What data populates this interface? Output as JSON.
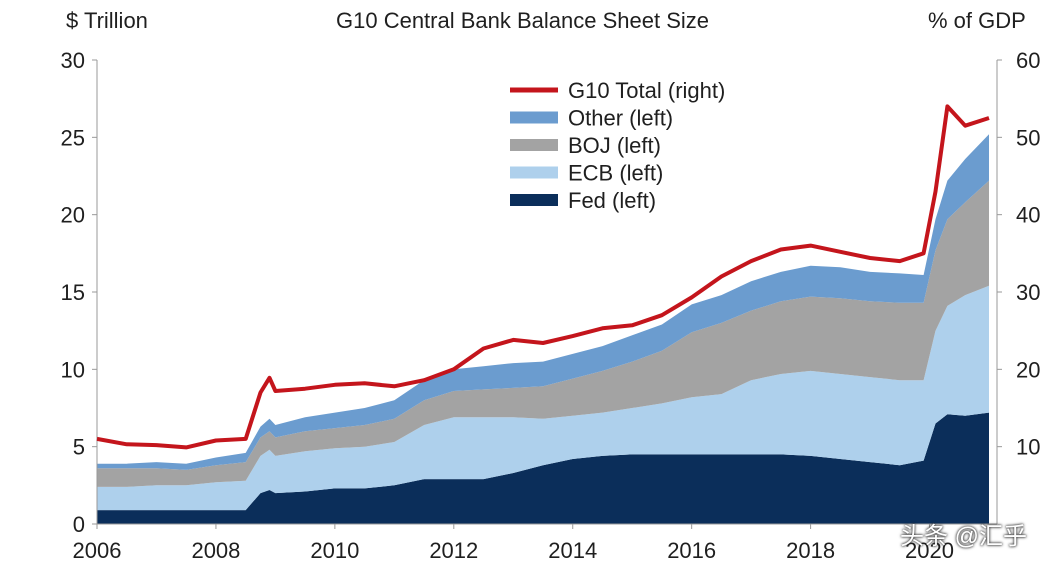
{
  "chart_data": {
    "type": "area",
    "title": "G10 Central Bank Balance Sheet Size",
    "left_axis_label": "$ Trillion",
    "right_axis_label": "% of GDP",
    "left_ylim": [
      0,
      30
    ],
    "right_ylim": [
      0,
      60
    ],
    "left_ticks": [
      "0",
      "5",
      "10",
      "15",
      "20",
      "25",
      "30"
    ],
    "right_ticks": [
      "10",
      "20",
      "30",
      "40",
      "50",
      "60"
    ],
    "xlim": [
      2006,
      2021
    ],
    "x_ticks": [
      "2006",
      "2008",
      "2010",
      "2012",
      "2014",
      "2016",
      "2018",
      "2020"
    ],
    "legend": [
      "G10 Total (right)",
      "Other (left)",
      "BOJ (left)",
      "ECB (left)",
      "Fed (left)"
    ],
    "legend_position": "top-center",
    "x": [
      2006.0,
      2006.5,
      2007.0,
      2007.5,
      2008.0,
      2008.5,
      2008.75,
      2008.9,
      2009.0,
      2009.5,
      2010.0,
      2010.5,
      2011.0,
      2011.5,
      2012.0,
      2012.5,
      2013.0,
      2013.5,
      2014.0,
      2014.5,
      2015.0,
      2015.5,
      2016.0,
      2016.5,
      2017.0,
      2017.5,
      2018.0,
      2018.5,
      2019.0,
      2019.5,
      2019.9,
      2020.1,
      2020.3,
      2020.6,
      2021.0
    ],
    "series": [
      {
        "name": "Fed (left)",
        "color": "#0b2e5a",
        "values": [
          0.9,
          0.9,
          0.9,
          0.9,
          0.9,
          0.9,
          2.0,
          2.2,
          2.0,
          2.1,
          2.3,
          2.3,
          2.5,
          2.9,
          2.9,
          2.9,
          3.3,
          3.8,
          4.2,
          4.4,
          4.5,
          4.5,
          4.5,
          4.5,
          4.5,
          4.5,
          4.4,
          4.2,
          4.0,
          3.8,
          4.1,
          6.5,
          7.1,
          7.0,
          7.2
        ]
      },
      {
        "name": "ECB (left)",
        "color": "#aed0ec",
        "values": [
          1.5,
          1.5,
          1.6,
          1.6,
          1.8,
          1.9,
          2.4,
          2.6,
          2.4,
          2.6,
          2.6,
          2.7,
          2.8,
          3.5,
          4.0,
          4.0,
          3.6,
          3.0,
          2.8,
          2.8,
          3.0,
          3.3,
          3.7,
          3.9,
          4.8,
          5.2,
          5.5,
          5.5,
          5.5,
          5.5,
          5.2,
          6.0,
          7.0,
          7.8,
          8.2
        ]
      },
      {
        "name": "BOJ (left)",
        "color": "#a3a3a3",
        "values": [
          1.2,
          1.2,
          1.1,
          1.0,
          1.1,
          1.2,
          1.2,
          1.2,
          1.2,
          1.3,
          1.3,
          1.4,
          1.5,
          1.6,
          1.7,
          1.8,
          1.9,
          2.1,
          2.4,
          2.7,
          3.0,
          3.4,
          4.2,
          4.6,
          4.5,
          4.7,
          4.8,
          4.9,
          4.9,
          5.0,
          5.0,
          5.2,
          5.6,
          6.0,
          6.8
        ]
      },
      {
        "name": "Other (left)",
        "color": "#6b9ccf",
        "values": [
          0.3,
          0.3,
          0.4,
          0.4,
          0.5,
          0.6,
          0.7,
          0.8,
          0.8,
          0.9,
          1.0,
          1.1,
          1.2,
          1.3,
          1.4,
          1.5,
          1.6,
          1.6,
          1.6,
          1.6,
          1.7,
          1.7,
          1.8,
          1.8,
          1.9,
          1.9,
          2.0,
          2.0,
          1.9,
          1.9,
          1.8,
          2.0,
          2.5,
          2.8,
          3.0
        ]
      },
      {
        "name": "G10 Total (right)",
        "color": "#c4151c",
        "axis": "right",
        "values": [
          11.0,
          10.3,
          10.2,
          9.9,
          10.8,
          11.0,
          17.0,
          18.9,
          17.2,
          17.5,
          18.0,
          18.2,
          17.8,
          18.6,
          20.0,
          22.7,
          23.8,
          23.4,
          24.3,
          25.3,
          25.7,
          27.0,
          29.3,
          32.0,
          34.0,
          35.5,
          36.0,
          35.2,
          34.4,
          34.0,
          35.0,
          43.0,
          54.0,
          51.5,
          52.5
        ]
      }
    ]
  },
  "watermark": "头条 @汇乎"
}
